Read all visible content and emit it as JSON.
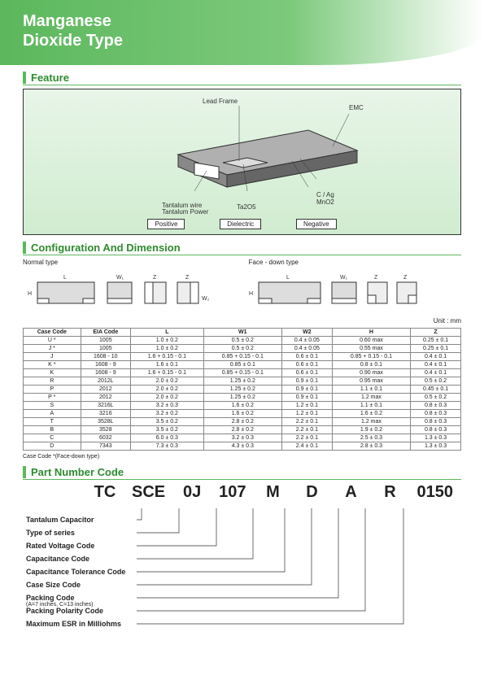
{
  "header": {
    "line1": "Manganese",
    "line2": "Dioxide Type"
  },
  "sections": {
    "feature": "Feature",
    "config": "Configuration And Dimension",
    "part": "Part Number Code"
  },
  "feature": {
    "callouts": {
      "lead_frame": "Lead Frame",
      "emc": "EMC",
      "tantalum_wire": "Tantalum wire",
      "tantalum_power": "Tantalum Power",
      "ta2o5": "Ta2O5",
      "c_ag": "C / Ag",
      "mno2": "MnO2"
    },
    "tags": {
      "positive": "Positive",
      "dielectric": "Dielectric",
      "negative": "Negative"
    }
  },
  "config": {
    "labels": {
      "normal": "Normal type",
      "face": "Face - down type"
    },
    "dim_letters": [
      "L",
      "W1",
      "Z",
      "Z",
      "L",
      "W1",
      "Z",
      "Z"
    ],
    "unit": "Unit : mm",
    "columns": [
      "Case Code",
      "EIA Code",
      "L",
      "W1",
      "W2",
      "H",
      "Z"
    ],
    "rows": [
      [
        "U *",
        "1005",
        "1.0 ± 0.2",
        "0.5 ± 0.2",
        "0.4 ± 0.05",
        "0.60 max",
        "0.25 ± 0.1"
      ],
      [
        "J *",
        "1005",
        "1.0 ± 0.2",
        "0.5 ± 0.2",
        "0.4 ± 0.05",
        "0.55 max",
        "0.25 ± 0.1"
      ],
      [
        "J",
        "1608 - 10",
        "1.6 + 0.15 - 0.1",
        "0.85 + 0.15 - 0.1",
        "0.6 ± 0.1",
        "0.85 + 0.15 - 0.1",
        "0.4 ± 0.1"
      ],
      [
        "K *",
        "1608 - 9",
        "1.6 ± 0.1",
        "0.85 ± 0.1",
        "0.6 ± 0.1",
        "0.8 ± 0.1",
        "0.4 ± 0.1"
      ],
      [
        "K",
        "1608 - 9",
        "1.6 + 0.15 - 0.1",
        "0.85 + 0.15 - 0.1",
        "0.6 ± 0.1",
        "0.90 max",
        "0.4 ± 0.1"
      ],
      [
        "R",
        "2012L",
        "2.0 ± 0.2",
        "1.25 ± 0.2",
        "0.9 ± 0.1",
        "0.95 max",
        "0.5 ± 0.2"
      ],
      [
        "P",
        "2012",
        "2.0 ± 0.2",
        "1.25 ± 0.2",
        "0.9 ± 0.1",
        "1.1 ± 0.1",
        "0.45 ± 0.1"
      ],
      [
        "P *",
        "2012",
        "2.0 ± 0.2",
        "1.25 ± 0.2",
        "0.9 ± 0.1",
        "1.2 max",
        "0.5 ± 0.2"
      ],
      [
        "S",
        "3216L",
        "3.2 ± 0.3",
        "1.6 ± 0.2",
        "1.2 ± 0.1",
        "1.1 ± 0.1",
        "0.8 ± 0.3"
      ],
      [
        "A",
        "3216",
        "3.2 ± 0.2",
        "1.6 ± 0.2",
        "1.2 ± 0.1",
        "1.6 ± 0.2",
        "0.8 ± 0.3"
      ],
      [
        "T",
        "3528L",
        "3.5 ± 0.2",
        "2.8 ± 0.2",
        "2.2 ± 0.1",
        "1.2 max",
        "0.8 ± 0.3"
      ],
      [
        "B",
        "3528",
        "3.5 ± 0.2",
        "2.8 ± 0.2",
        "2.2 ± 0.1",
        "1.9 ± 0.2",
        "0.8 ± 0.3"
      ],
      [
        "C",
        "6032",
        "6.0 ± 0.3",
        "3.2 ± 0.3",
        "2.2 ± 0.1",
        "2.5 ± 0.3",
        "1.3 ± 0.3"
      ],
      [
        "D",
        "7343",
        "7.3 ± 0.3",
        "4.3 ± 0.3",
        "2.4 ± 0.1",
        "2.8 ± 0.3",
        "1.3 ± 0.3"
      ]
    ],
    "note": "Case Code *(Face-down type)"
  },
  "part": {
    "codes": [
      "TC",
      "SCE",
      "0J",
      "107",
      "M",
      "D",
      "A",
      "R",
      "0150"
    ],
    "legend": [
      {
        "label": "Tantalum Capacitor",
        "col": 0
      },
      {
        "label": "Type of series",
        "col": 1
      },
      {
        "label": "Rated Voltage Code",
        "col": 2
      },
      {
        "label": "Capacitance Code",
        "col": 3
      },
      {
        "label": "Capacitance Tolerance Code",
        "col": 4
      },
      {
        "label": "Case Size Code",
        "col": 5
      },
      {
        "label": "Packing Code",
        "sub": "(A=7 inches, C=13 inches)",
        "col": 6
      },
      {
        "label": "Packing Polarity Code",
        "col": 7
      },
      {
        "label": "Maximum ESR in Milliohms",
        "col": 8
      }
    ]
  }
}
